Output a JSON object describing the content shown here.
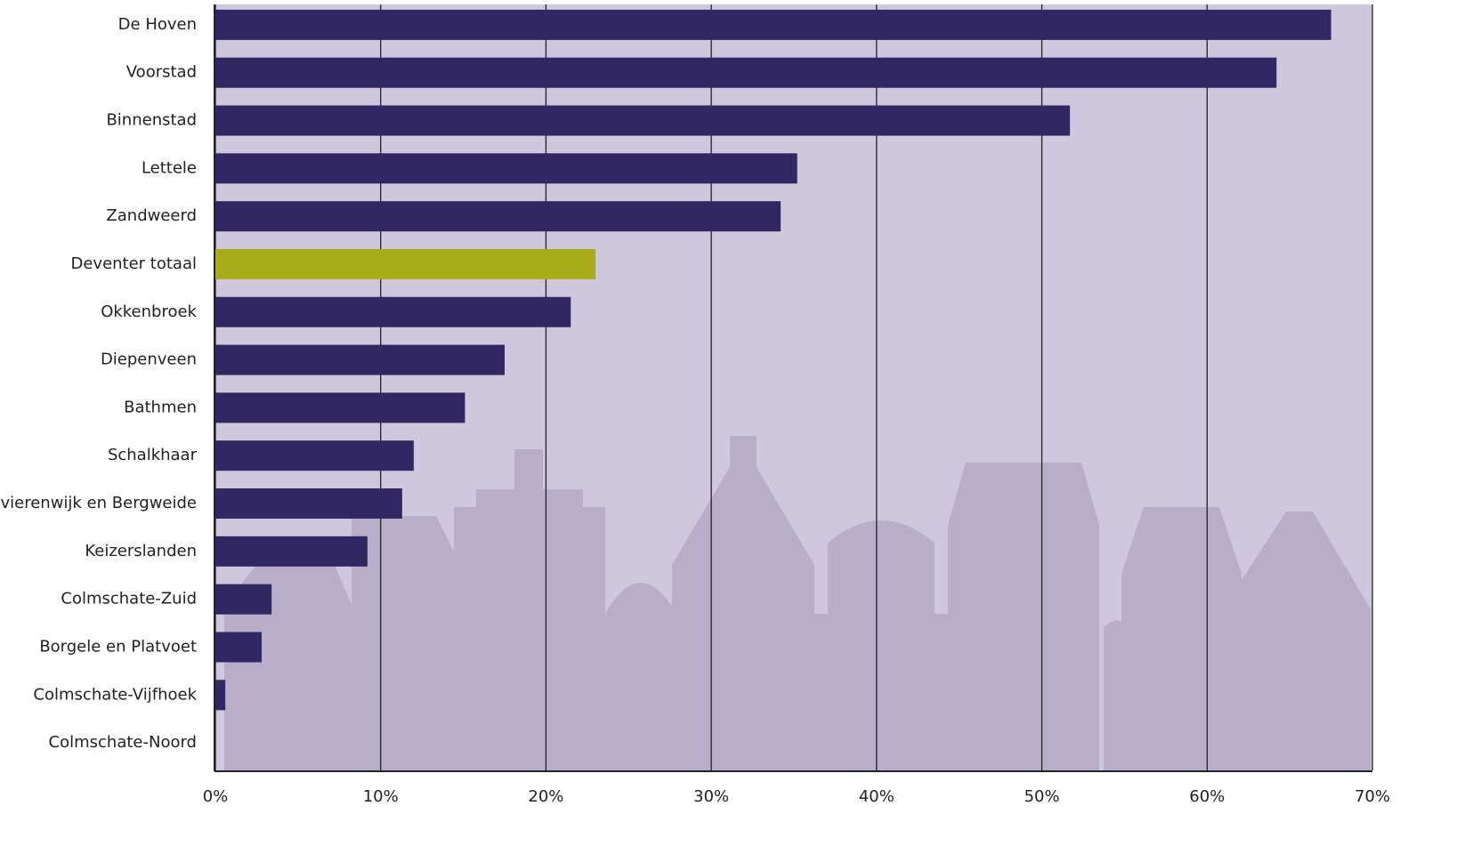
{
  "chart_data": {
    "type": "bar",
    "orientation": "horizontal",
    "categories": [
      "De Hoven",
      "Voorstad",
      "Binnenstad",
      "Lettele",
      "Zandweerd",
      "Deventer totaal",
      "Okkenbroek",
      "Diepenveen",
      "Bathmen",
      "Schalkhaar",
      "Rivierenwijk en Bergweide",
      "Keizerslanden",
      "Colmschate-Zuid",
      "Borgele en Platvoet",
      "Colmschate-Vijfhoek",
      "Colmschate-Noord"
    ],
    "values": [
      67.5,
      64.2,
      51.7,
      35.2,
      34.2,
      23.0,
      21.5,
      17.5,
      15.1,
      12.0,
      11.3,
      9.2,
      3.4,
      2.8,
      0.6,
      0
    ],
    "colors": [
      "#312762",
      "#312762",
      "#312762",
      "#312762",
      "#312762",
      "#a9ad1a",
      "#312762",
      "#312762",
      "#312762",
      "#312762",
      "#312762",
      "#312762",
      "#312762",
      "#312762",
      "#312762",
      "#312762"
    ],
    "xlim": [
      0,
      70
    ],
    "xticks": [
      {
        "value": 0,
        "label": "0%"
      },
      {
        "value": 10,
        "label": "10%"
      },
      {
        "value": 20,
        "label": "20%"
      },
      {
        "value": 30,
        "label": "30%"
      },
      {
        "value": 40,
        "label": "40%"
      },
      {
        "value": 50,
        "label": "50%"
      },
      {
        "value": 60,
        "label": "60%"
      },
      {
        "value": 70,
        "label": "70%"
      }
    ],
    "grid": true
  }
}
